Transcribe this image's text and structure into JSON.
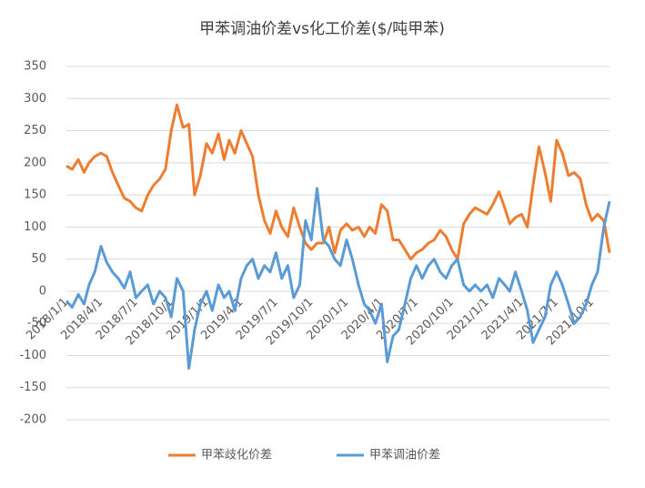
{
  "chart_data": {
    "type": "line",
    "title": "甲苯调油价差vs化工价差($/吨甲苯)",
    "x": [
      "2018/1/1",
      "2018/1/16",
      "2018/2/1",
      "2018/2/16",
      "2018/3/1",
      "2018/3/16",
      "2018/4/1",
      "2018/4/16",
      "2018/5/1",
      "2018/5/16",
      "2018/6/1",
      "2018/6/16",
      "2018/7/1",
      "2018/7/16",
      "2018/8/1",
      "2018/8/16",
      "2018/9/1",
      "2018/9/16",
      "2018/10/1",
      "2018/10/16",
      "2018/11/1",
      "2018/11/16",
      "2018/12/1",
      "2018/12/16",
      "2019/1/1",
      "2019/1/16",
      "2019/2/1",
      "2019/2/16",
      "2019/3/1",
      "2019/3/16",
      "2019/4/1",
      "2019/4/16",
      "2019/5/1",
      "2019/5/16",
      "2019/6/1",
      "2019/6/16",
      "2019/7/1",
      "2019/7/16",
      "2019/8/1",
      "2019/8/16",
      "2019/9/1",
      "2019/9/16",
      "2019/10/1",
      "2019/10/16",
      "2019/11/1",
      "2019/11/16",
      "2019/12/1",
      "2019/12/16",
      "2020/1/1",
      "2020/1/16",
      "2020/2/1",
      "2020/2/16",
      "2020/3/1",
      "2020/3/16",
      "2020/4/1",
      "2020/4/16",
      "2020/5/1",
      "2020/5/16",
      "2020/6/1",
      "2020/6/16",
      "2020/7/1",
      "2020/7/16",
      "2020/8/1",
      "2020/8/16",
      "2020/9/1",
      "2020/9/16",
      "2020/10/1",
      "2020/10/16",
      "2020/11/1",
      "2020/11/16",
      "2020/12/1",
      "2020/12/16",
      "2021/1/1",
      "2021/1/16",
      "2021/2/1",
      "2021/2/16",
      "2021/3/1",
      "2021/3/16",
      "2021/4/1",
      "2021/4/16",
      "2021/5/1",
      "2021/5/16",
      "2021/6/1",
      "2021/6/16",
      "2021/7/1",
      "2021/7/16",
      "2021/8/1",
      "2021/8/16",
      "2021/9/1",
      "2021/9/16",
      "2021/10/1",
      "2021/10/16",
      "2021/11/1",
      "2021/11/16"
    ],
    "series": [
      {
        "name": "甲苯歧化价差",
        "color": "#ed7d31",
        "values": [
          195,
          190,
          205,
          185,
          200,
          210,
          215,
          210,
          185,
          165,
          145,
          140,
          130,
          125,
          150,
          165,
          175,
          190,
          250,
          290,
          255,
          260,
          150,
          180,
          230,
          215,
          245,
          205,
          235,
          215,
          250,
          230,
          210,
          150,
          110,
          90,
          125,
          100,
          85,
          130,
          100,
          75,
          65,
          75,
          75,
          100,
          60,
          95,
          105,
          95,
          100,
          85,
          100,
          90,
          135,
          125,
          80,
          80,
          65,
          50,
          60,
          65,
          75,
          80,
          95,
          85,
          65,
          50,
          105,
          120,
          130,
          125,
          120,
          135,
          155,
          130,
          105,
          115,
          120,
          100,
          165,
          225,
          185,
          140,
          235,
          215,
          180,
          185,
          175,
          135,
          110,
          120,
          110,
          60
        ]
      },
      {
        "name": "甲苯调油价差",
        "color": "#5b9bd5",
        "values": [
          -15,
          -25,
          -5,
          -20,
          10,
          30,
          70,
          45,
          30,
          20,
          5,
          30,
          -10,
          0,
          10,
          -20,
          0,
          -10,
          -40,
          20,
          0,
          -120,
          -60,
          -20,
          0,
          -30,
          10,
          -10,
          0,
          -30,
          20,
          40,
          50,
          20,
          40,
          30,
          60,
          20,
          40,
          -10,
          10,
          110,
          80,
          160,
          80,
          70,
          50,
          40,
          80,
          50,
          10,
          -20,
          -30,
          -50,
          -20,
          -110,
          -70,
          -60,
          -20,
          20,
          40,
          20,
          40,
          50,
          30,
          20,
          40,
          50,
          10,
          0,
          10,
          0,
          10,
          -10,
          20,
          10,
          0,
          30,
          0,
          -30,
          -80,
          -60,
          -40,
          10,
          30,
          10,
          -20,
          -50,
          -40,
          -20,
          10,
          30,
          100,
          140
        ]
      }
    ],
    "xlim": [
      "2018/1/1",
      "2021/11/16"
    ],
    "xticks": [
      "2018/1/1",
      "2018/4/1",
      "2018/7/1",
      "2018/10/1",
      "2019/1/1",
      "2019/4/1",
      "2019/7/1",
      "2019/10/1",
      "2020/1/1",
      "2020/4/1",
      "2020/7/1",
      "2020/10/1",
      "2021/1/1",
      "2021/4/1",
      "2021/7/1",
      "2021/10/1"
    ],
    "ylim": [
      -200,
      350
    ],
    "yticks": [
      -200,
      -150,
      -100,
      -50,
      0,
      50,
      100,
      150,
      200,
      250,
      300,
      350
    ],
    "grid": true,
    "legend": "bottom"
  }
}
